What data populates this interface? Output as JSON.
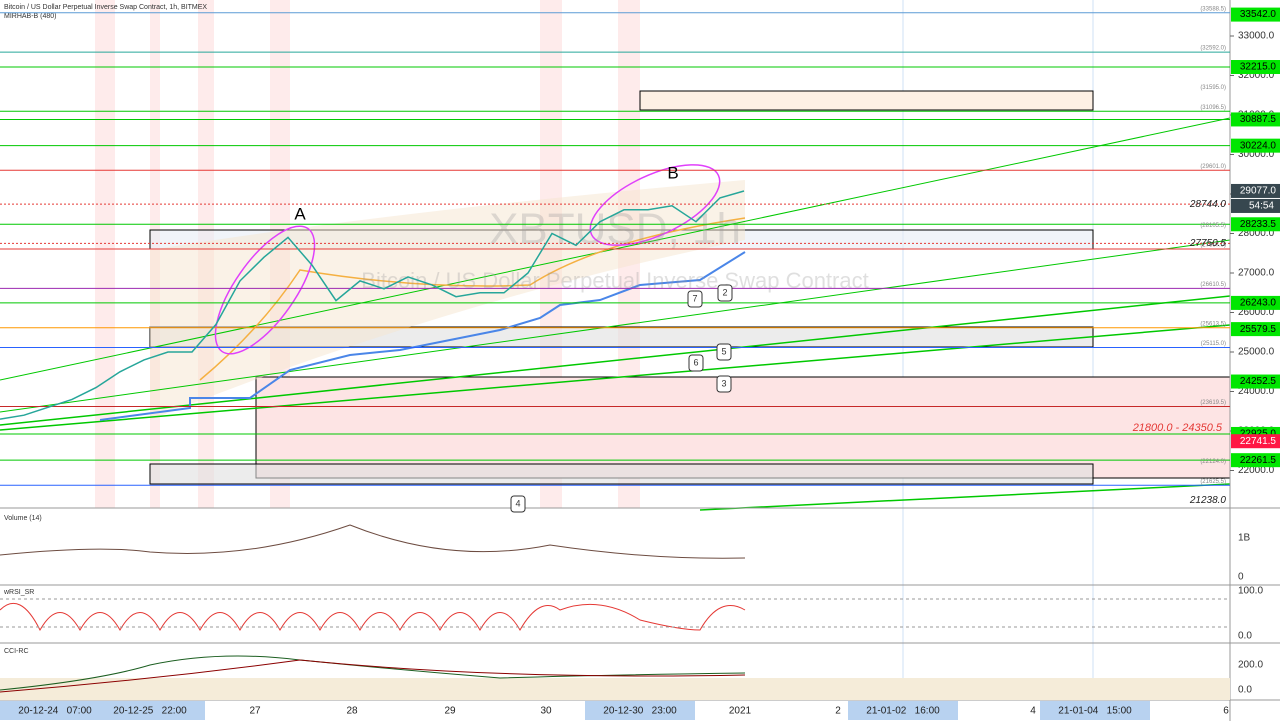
{
  "header": {
    "title": "Bitcoin / US Dollar Perpetual Inverse Swap Contract, 1h, BITMEX",
    "indicator": "MIRHAB-B (480)"
  },
  "watermark": {
    "symbol": "XBTUSD, 1h",
    "name": "Bitcoin / US Dollar Perpetual Inverse Swap Contract"
  },
  "chart": {
    "ylim": [
      21500,
      33800
    ],
    "yticks": [
      {
        "value": 33000,
        "label": "33000.0"
      },
      {
        "value": 32000,
        "label": "32000.0"
      },
      {
        "value": 31000,
        "label": "31000.0"
      },
      {
        "value": 30000,
        "label": "30000.0"
      },
      {
        "value": 29000,
        "label": "29000.0"
      },
      {
        "value": 28000,
        "label": "28000.0"
      },
      {
        "value": 27000,
        "label": "27000.0"
      },
      {
        "value": 26000,
        "label": "26000.0"
      },
      {
        "value": 25000,
        "label": "25000.0"
      },
      {
        "value": 24000,
        "label": "24000.0"
      },
      {
        "value": 23000,
        "label": "23000.0"
      },
      {
        "value": 22000,
        "label": "22000.0"
      }
    ],
    "price_series": {
      "color": "#26a69a",
      "values": [
        23300,
        23400,
        23600,
        23800,
        24100,
        24500,
        24800,
        25000,
        25000,
        25700,
        26800,
        27400,
        27900,
        27200,
        26300,
        26800,
        26600,
        26900,
        26700,
        26400,
        26500,
        26500,
        27000,
        28000,
        27700,
        28300,
        28600,
        28600,
        28700,
        28300,
        28900,
        29077
      ]
    },
    "levels": [
      {
        "value": 33588.5,
        "color": "#5b9bd5"
      },
      {
        "value": 32592.0,
        "color": "#26a69a"
      },
      {
        "value": 32215.0,
        "color": "#00c800"
      },
      {
        "value": 31096.5,
        "color": "#00c800"
      },
      {
        "value": 30887.5,
        "color": "#00c800"
      },
      {
        "value": 30224.0,
        "color": "#00c800"
      },
      {
        "value": 29601.0,
        "color": "#e53935"
      },
      {
        "value": 28233.5,
        "color": "#00c800"
      },
      {
        "value": 27607.0,
        "color": "#e53935"
      },
      {
        "value": 26610.5,
        "color": "#9c27b0"
      },
      {
        "value": 26243.0,
        "color": "#00c800"
      },
      {
        "value": 25613.5,
        "color": "#ff9800"
      },
      {
        "value": 25115.0,
        "color": "#2962ff"
      },
      {
        "value": 23619.5,
        "color": "#c62828"
      },
      {
        "value": 22925.0,
        "color": "#00c800"
      },
      {
        "value": 22261.5,
        "color": "#00c800"
      },
      {
        "value": 21625.5,
        "color": "#2962ff"
      }
    ],
    "level_labels": [
      {
        "value": 33588.5,
        "label": "(33588.5)"
      },
      {
        "value": 32592.0,
        "label": "(32592.0)"
      },
      {
        "value": 31595.0,
        "label": "(31595.0)"
      },
      {
        "value": 31096.5,
        "label": "(31096.5)"
      },
      {
        "value": 29601.0,
        "label": "(29601.0)"
      },
      {
        "value": 28105.5,
        "label": "(28105.5)"
      },
      {
        "value": 27607.0,
        "label": "(27607.0)"
      },
      {
        "value": 26610.5,
        "label": "(26610.5)"
      },
      {
        "value": 25613.5,
        "label": "(25613.5)"
      },
      {
        "value": 25115.0,
        "label": "(25115.0)"
      },
      {
        "value": 23619.5,
        "label": "(23619.5)"
      },
      {
        "value": 22124.0,
        "label": "(22124.0)"
      },
      {
        "value": 21625.5,
        "label": "(21625.5)"
      }
    ],
    "price_marks": [
      {
        "value": 28744.0,
        "label": "28744.0"
      },
      {
        "value": 27750.5,
        "label": "27750.5"
      },
      {
        "value": 21238.0,
        "label": "21238.0"
      }
    ],
    "badges": [
      {
        "value": 33542.0,
        "label": "33542.0",
        "color": "#00e600"
      },
      {
        "value": 32215.0,
        "label": "32215.0",
        "color": "#00e600"
      },
      {
        "value": 30887.5,
        "label": "30887.5",
        "color": "#00e600"
      },
      {
        "value": 30224.0,
        "label": "30224.0",
        "color": "#00e600"
      },
      {
        "value": 29077.0,
        "label": "29077.0",
        "color": "#37474f"
      },
      {
        "value": 28233.5,
        "label": "28233.5",
        "color": "#00e600"
      },
      {
        "value": 26243.0,
        "label": "26243.0",
        "color": "#00e600"
      },
      {
        "value": 25579.5,
        "label": "25579.5",
        "color": "#00e600"
      },
      {
        "value": 24252.5,
        "label": "24252.5",
        "color": "#00e600"
      },
      {
        "value": 22925.0,
        "label": "22925.0",
        "color": "#00e600"
      },
      {
        "value": 22741.5,
        "label": "22741.5",
        "color": "#ff1744"
      },
      {
        "value": 22261.5,
        "label": "22261.5",
        "color": "#00e600"
      }
    ],
    "countdown": "54:54",
    "zone_label": "21800.0 - 24350.5",
    "annotations": [
      "A",
      "B"
    ],
    "wave_labels": [
      "7",
      "2",
      "5",
      "6",
      "3",
      "4"
    ]
  },
  "panels": [
    {
      "title": "Volume (14)",
      "axis": [
        "1B",
        "0"
      ]
    },
    {
      "title": "wRSI_SR",
      "axis": [
        "100.0",
        "0.0"
      ]
    },
    {
      "title": "CCI-RC",
      "axis": [
        "200.0",
        "0.0"
      ]
    }
  ],
  "time_axis": [
    "20-12-24   07:00",
    "20-12-25   22:00",
    "27",
    "28",
    "29",
    "30",
    "20-12-30   23:00",
    "2021",
    "2",
    "21-01-02   16:00",
    "4",
    "21-01-04   15:00",
    "6"
  ]
}
